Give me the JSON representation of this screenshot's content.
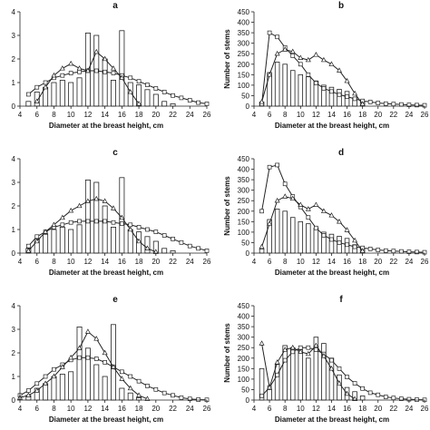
{
  "chart_data": [
    {
      "type": "bar",
      "panel": "a",
      "xlabel": "Diameter at the breast height, cm",
      "ylabel": "",
      "xlim": [
        4,
        26
      ],
      "ylim": [
        0,
        4
      ],
      "xticks": [
        "4",
        "6",
        "8",
        "10",
        "12",
        "14",
        "16",
        "18",
        "20",
        "22",
        "24",
        "26"
      ],
      "yticks": [
        "0",
        "1",
        "2",
        "3",
        "4"
      ],
      "bars": {
        "x": [
          5,
          6,
          7,
          8,
          9,
          10,
          11,
          12,
          13,
          14,
          15,
          16,
          17,
          18,
          19,
          20,
          21,
          22
        ],
        "values": [
          0.2,
          0.6,
          0.8,
          1.0,
          1.1,
          1.0,
          1.2,
          3.1,
          3.0,
          2.0,
          1.1,
          3.2,
          1.0,
          0.9,
          0.7,
          0.5,
          0.2,
          0.1
        ]
      },
      "series": [
        {
          "marker": "square",
          "x": [
            5,
            6,
            7,
            8,
            9,
            10,
            11,
            12,
            13,
            14,
            15,
            16,
            17,
            18,
            19,
            20,
            21,
            22,
            23,
            24,
            25,
            26
          ],
          "values": [
            0.5,
            0.8,
            1.0,
            1.2,
            1.3,
            1.4,
            1.45,
            1.5,
            1.5,
            1.45,
            1.4,
            1.3,
            1.2,
            1.05,
            0.9,
            0.75,
            0.6,
            0.45,
            0.35,
            0.25,
            0.15,
            0.1
          ]
        },
        {
          "marker": "triangle",
          "x": [
            6,
            7,
            8,
            9,
            10,
            11,
            12,
            13,
            14,
            15,
            16,
            17,
            18
          ],
          "values": [
            0.2,
            0.8,
            1.3,
            1.6,
            1.8,
            1.6,
            1.5,
            2.3,
            2.0,
            1.6,
            1.2,
            0.6,
            0.1
          ]
        }
      ]
    },
    {
      "type": "bar",
      "panel": "b",
      "xlabel": "Diameter at the breast height, cm",
      "ylabel": "Number of stems",
      "xlim": [
        4,
        26
      ],
      "ylim": [
        0,
        450
      ],
      "xticks": [
        "4",
        "6",
        "8",
        "10",
        "12",
        "14",
        "16",
        "18",
        "20",
        "22",
        "24",
        "26"
      ],
      "yticks": [
        "0",
        "50",
        "100",
        "150",
        "200",
        "250",
        "300",
        "350",
        "400",
        "450"
      ],
      "bars": {
        "x": [
          5,
          6,
          7,
          8,
          9,
          10,
          11,
          12,
          13,
          14,
          15,
          16,
          17,
          18
        ],
        "values": [
          20,
          160,
          210,
          200,
          170,
          150,
          140,
          120,
          100,
          90,
          80,
          70,
          40,
          20
        ]
      },
      "series": [
        {
          "marker": "square",
          "x": [
            5,
            6,
            7,
            8,
            9,
            10,
            11,
            12,
            13,
            14,
            15,
            16,
            17,
            18,
            19,
            20,
            21,
            22,
            23,
            24,
            25,
            26
          ],
          "values": [
            10,
            350,
            330,
            280,
            240,
            200,
            150,
            110,
            85,
            70,
            55,
            45,
            35,
            25,
            20,
            15,
            12,
            10,
            8,
            6,
            5,
            4
          ]
        },
        {
          "marker": "triangle",
          "x": [
            5,
            6,
            7,
            8,
            9,
            10,
            11,
            12,
            13,
            14,
            15,
            16,
            17,
            18
          ],
          "values": [
            20,
            150,
            250,
            270,
            260,
            230,
            220,
            245,
            220,
            200,
            170,
            120,
            60,
            10
          ]
        }
      ]
    },
    {
      "type": "bar",
      "panel": "c",
      "xlabel": "Diameter at the breast height, cm",
      "ylabel": "",
      "xlim": [
        4,
        26
      ],
      "ylim": [
        0,
        4
      ],
      "xticks": [
        "4",
        "6",
        "8",
        "10",
        "12",
        "14",
        "16",
        "18",
        "20",
        "22",
        "24",
        "26"
      ],
      "yticks": [
        "0",
        "1",
        "2",
        "3",
        "4"
      ],
      "bars": {
        "x": [
          5,
          6,
          7,
          8,
          9,
          10,
          11,
          12,
          13,
          14,
          15,
          16,
          17,
          18,
          19,
          20,
          21,
          22
        ],
        "values": [
          0.2,
          0.6,
          0.8,
          1.0,
          1.1,
          1.0,
          1.2,
          3.1,
          3.0,
          2.0,
          1.1,
          3.2,
          1.0,
          0.9,
          0.7,
          0.5,
          0.2,
          0.1
        ]
      },
      "series": [
        {
          "marker": "square",
          "x": [
            5,
            6,
            7,
            8,
            9,
            10,
            11,
            12,
            13,
            14,
            15,
            16,
            17,
            18,
            19,
            20,
            21,
            22,
            23,
            24,
            25,
            26
          ],
          "values": [
            0.3,
            0.7,
            0.9,
            1.1,
            1.2,
            1.3,
            1.35,
            1.35,
            1.35,
            1.35,
            1.3,
            1.25,
            1.2,
            1.1,
            1.0,
            0.9,
            0.75,
            0.6,
            0.45,
            0.3,
            0.2,
            0.1
          ]
        },
        {
          "marker": "triangle",
          "x": [
            5,
            6,
            7,
            8,
            9,
            10,
            11,
            12,
            13,
            14,
            15,
            16,
            17,
            18,
            19,
            20
          ],
          "values": [
            0.1,
            0.5,
            0.9,
            1.2,
            1.5,
            1.8,
            2.0,
            2.2,
            2.3,
            2.2,
            1.9,
            1.5,
            1.0,
            0.5,
            0.2,
            0.05
          ]
        }
      ]
    },
    {
      "type": "bar",
      "panel": "d",
      "xlabel": "Diameter at the breast height, cm",
      "ylabel": "Number of stems",
      "xlim": [
        4,
        26
      ],
      "ylim": [
        0,
        450
      ],
      "xticks": [
        "4",
        "6",
        "8",
        "10",
        "12",
        "14",
        "16",
        "18",
        "20",
        "22",
        "24",
        "26"
      ],
      "yticks": [
        "0",
        "50",
        "100",
        "150",
        "200",
        "250",
        "300",
        "350",
        "400",
        "450"
      ],
      "bars": {
        "x": [
          5,
          6,
          7,
          8,
          9,
          10,
          11,
          12,
          13,
          14,
          15,
          16,
          17,
          18
        ],
        "values": [
          20,
          160,
          210,
          200,
          170,
          150,
          140,
          120,
          100,
          90,
          80,
          70,
          40,
          20
        ]
      },
      "series": [
        {
          "marker": "square",
          "x": [
            5,
            6,
            7,
            8,
            9,
            10,
            11,
            12,
            13,
            14,
            15,
            16,
            17,
            18,
            19,
            20,
            21,
            22,
            23,
            24,
            25,
            26
          ],
          "values": [
            200,
            410,
            420,
            330,
            270,
            220,
            170,
            120,
            85,
            65,
            50,
            40,
            30,
            25,
            20,
            15,
            12,
            10,
            8,
            6,
            5,
            4
          ]
        },
        {
          "marker": "triangle",
          "x": [
            5,
            6,
            7,
            8,
            9,
            10,
            11,
            12,
            13,
            14,
            15,
            16,
            17,
            18
          ],
          "values": [
            30,
            140,
            250,
            270,
            260,
            230,
            210,
            230,
            200,
            180,
            150,
            110,
            60,
            10
          ]
        }
      ]
    },
    {
      "type": "bar",
      "panel": "e",
      "xlabel": "Diameter at the breast height, cm",
      "ylabel": "",
      "xlim": [
        4,
        26
      ],
      "ylim": [
        0,
        4
      ],
      "xticks": [
        "4",
        "6",
        "8",
        "10",
        "12",
        "14",
        "16",
        "18",
        "20",
        "22",
        "24",
        "26"
      ],
      "yticks": [
        "0",
        "1",
        "2",
        "3",
        "4"
      ],
      "bars": {
        "x": [
          5,
          6,
          7,
          8,
          9,
          10,
          11,
          12,
          13,
          14,
          15,
          16,
          17,
          18
        ],
        "values": [
          0.2,
          0.5,
          0.7,
          1.0,
          1.1,
          1.2,
          3.1,
          2.2,
          1.5,
          1.0,
          3.2,
          0.5,
          0.3,
          0.1
        ]
      },
      "series": [
        {
          "marker": "square",
          "x": [
            4,
            5,
            6,
            7,
            8,
            9,
            10,
            11,
            12,
            13,
            14,
            15,
            16,
            17,
            18,
            19,
            20,
            21,
            22,
            23,
            24,
            25,
            26
          ],
          "values": [
            0.2,
            0.4,
            0.7,
            1.0,
            1.3,
            1.5,
            1.7,
            1.8,
            1.8,
            1.75,
            1.6,
            1.4,
            1.2,
            1.0,
            0.8,
            0.6,
            0.45,
            0.3,
            0.2,
            0.1,
            0.05,
            0.02,
            0.01
          ]
        },
        {
          "marker": "triangle",
          "x": [
            4,
            5,
            6,
            7,
            8,
            9,
            10,
            11,
            12,
            13,
            14,
            15,
            16,
            17,
            18,
            19
          ],
          "values": [
            0.1,
            0.2,
            0.4,
            0.7,
            1.0,
            1.4,
            1.8,
            2.2,
            2.9,
            2.6,
            2.0,
            1.4,
            0.9,
            0.5,
            0.2,
            0.05
          ]
        }
      ]
    },
    {
      "type": "bar",
      "panel": "f",
      "xlabel": "Diameter at the breast height, cm",
      "ylabel": "Number of stems",
      "xlim": [
        4,
        26
      ],
      "ylim": [
        0,
        450
      ],
      "xticks": [
        "4",
        "6",
        "8",
        "10",
        "12",
        "14",
        "16",
        "18",
        "20",
        "22",
        "24",
        "26"
      ],
      "yticks": [
        "0",
        "50",
        "100",
        "150",
        "200",
        "250",
        "300",
        "350",
        "400",
        "450"
      ],
      "bars": {
        "x": [
          5,
          6,
          7,
          8,
          9,
          10,
          11,
          12,
          13,
          14,
          15,
          16,
          17,
          18
        ],
        "values": [
          150,
          50,
          170,
          260,
          250,
          240,
          200,
          300,
          270,
          200,
          120,
          60,
          40,
          20
        ]
      },
      "series": [
        {
          "marker": "square",
          "x": [
            5,
            6,
            7,
            8,
            9,
            10,
            11,
            12,
            13,
            14,
            15,
            16,
            17,
            18,
            19,
            20,
            21,
            22,
            23,
            24,
            25,
            26
          ],
          "values": [
            20,
            60,
            120,
            190,
            230,
            250,
            250,
            240,
            220,
            190,
            150,
            110,
            80,
            55,
            35,
            25,
            15,
            10,
            6,
            4,
            2,
            1
          ]
        },
        {
          "marker": "triangle",
          "x": [
            5,
            6,
            7,
            8,
            9,
            10,
            11,
            12,
            13,
            14,
            15,
            16,
            17
          ],
          "values": [
            270,
            60,
            180,
            240,
            250,
            230,
            220,
            260,
            210,
            150,
            80,
            30,
            5
          ]
        }
      ]
    }
  ]
}
